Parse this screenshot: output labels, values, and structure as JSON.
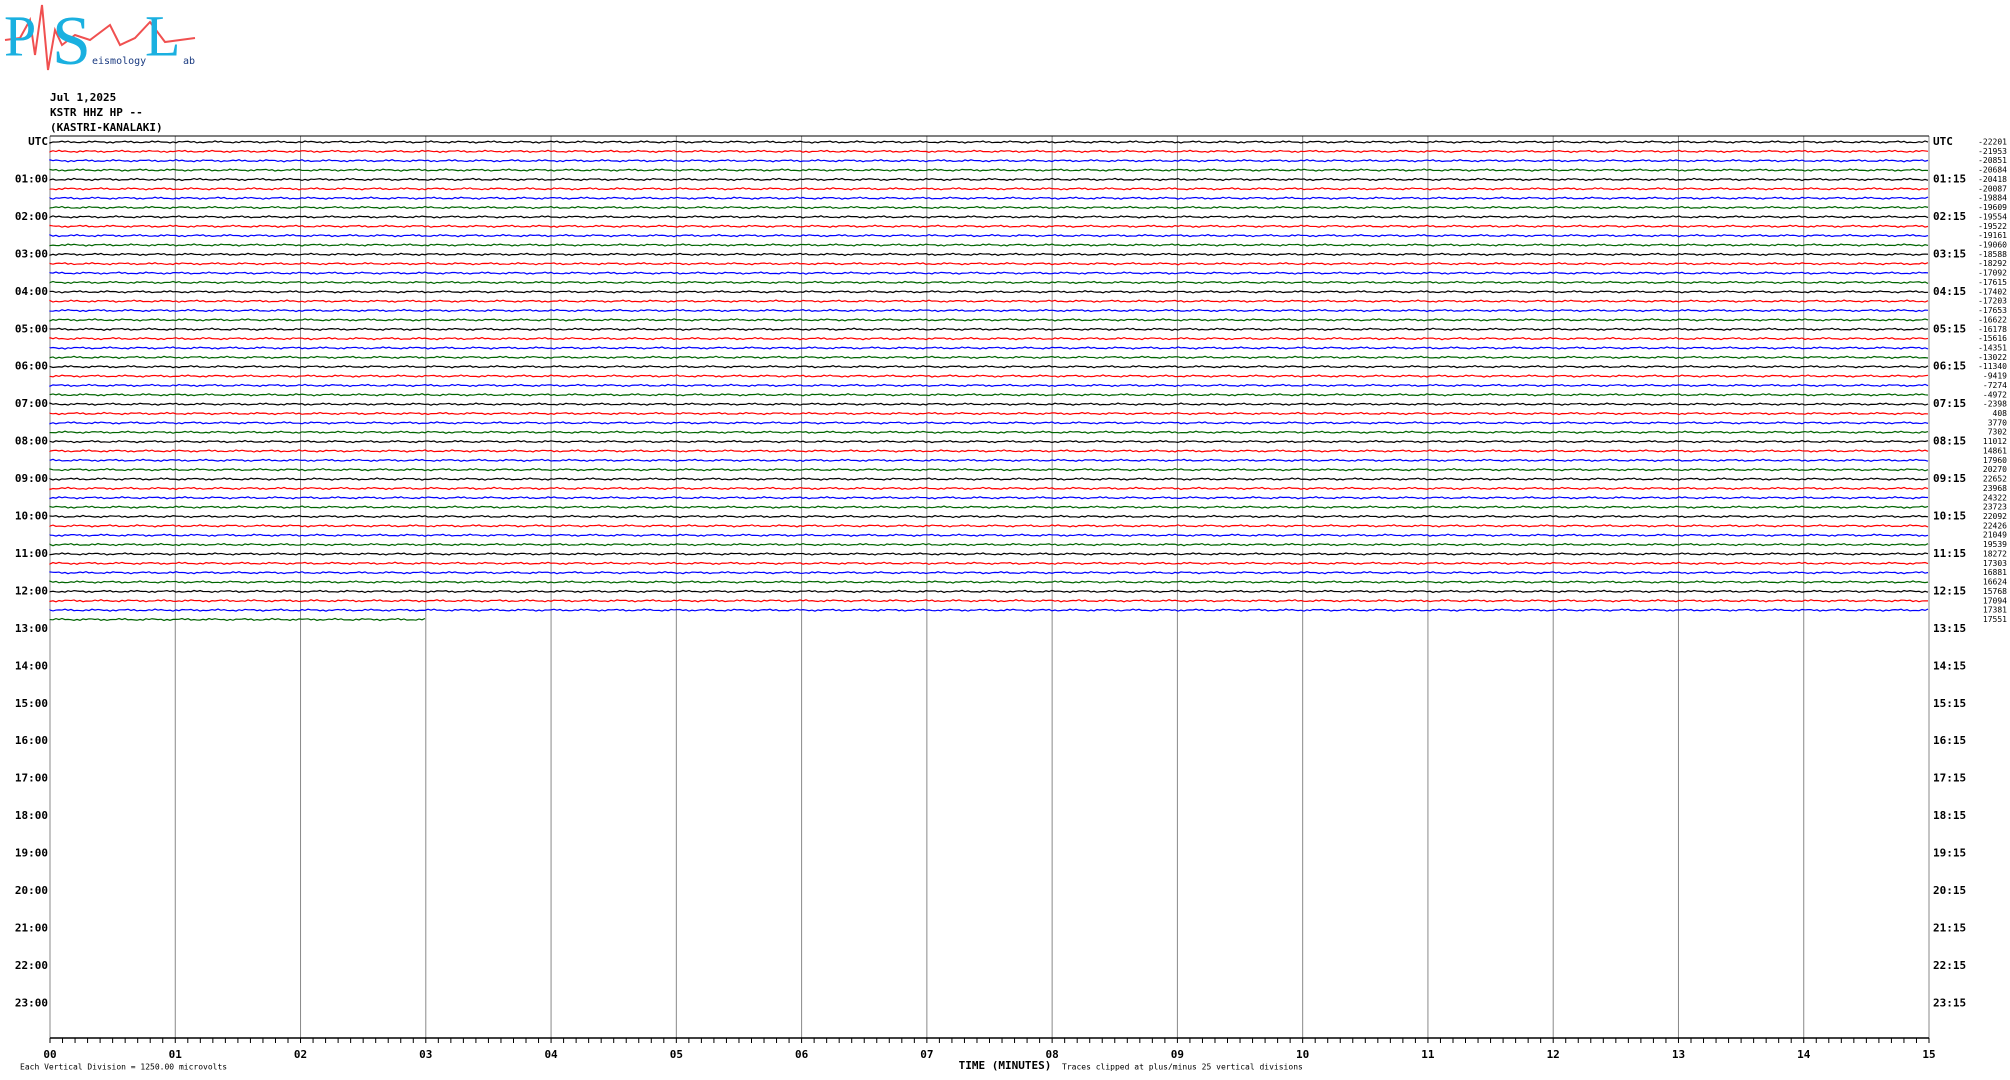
{
  "chart_data": {
    "type": "helicorder",
    "logo": {
      "letters": [
        "P",
        "S",
        "L"
      ],
      "words": [
        "eismology",
        "ab"
      ]
    },
    "title_lines": [
      "Jul 1,2025",
      "KSTR HHZ HP --",
      "(KASTRI-KANALAKI)"
    ],
    "left_labels": [
      "UTC",
      "01:00",
      "02:00",
      "03:00",
      "04:00",
      "05:00",
      "06:00",
      "07:00",
      "08:00",
      "09:00",
      "10:00",
      "11:00",
      "12:00",
      "13:00",
      "14:00",
      "15:00",
      "16:00",
      "17:00",
      "18:00",
      "19:00",
      "20:00",
      "21:00",
      "22:00",
      "23:00"
    ],
    "right_labels": [
      "UTC",
      "01:15",
      "02:15",
      "03:15",
      "04:15",
      "05:15",
      "06:15",
      "07:15",
      "08:15",
      "09:15",
      "10:15",
      "11:15",
      "12:15",
      "13:15",
      "14:15",
      "15:15",
      "16:15",
      "17:15",
      "18:15",
      "19:15",
      "20:15",
      "21:15",
      "22:15",
      "23:15"
    ],
    "colors": [
      "#000000",
      "#ff0000",
      "#0000ff",
      "#006400"
    ],
    "offsets": [
      -22201,
      -21953,
      -20851,
      -20684,
      -20418,
      -20087,
      -19884,
      -19609,
      -19554,
      -19522,
      -19161,
      -19060,
      -18588,
      -18292,
      -17092,
      -17615,
      -17402,
      -17203,
      -17653,
      -16622,
      -16178,
      -15616,
      -14351,
      -13022,
      -11340,
      -9419,
      -7274,
      -4972,
      -2398,
      408,
      3770,
      7302,
      11012,
      14861,
      17960,
      20270,
      22652,
      23968,
      24322,
      23723,
      22092,
      22426,
      21049,
      19539,
      18272,
      17303,
      16881,
      16624,
      15768,
      17094,
      17381,
      17551
    ],
    "last_trace_end": 3,
    "xlim": [
      0,
      15
    ],
    "xticks": [
      {
        "value": 0,
        "label": "00"
      },
      {
        "value": 1,
        "label": "01"
      },
      {
        "value": 2,
        "label": "02"
      },
      {
        "value": 3,
        "label": "03"
      },
      {
        "value": 4,
        "label": "04"
      },
      {
        "value": 5,
        "label": "05"
      },
      {
        "value": 6,
        "label": "06"
      },
      {
        "value": 7,
        "label": "07"
      },
      {
        "value": 8,
        "label": "08"
      },
      {
        "value": 9,
        "label": "09"
      },
      10,
      11,
      12,
      13,
      14,
      15
    ],
    "xlabel": "TIME (MINUTES)",
    "scale_note": "Each Vertical Division = 1250.00 microvolts",
    "clip_note": "Traces clipped at plus/minus 25 vertical divisions"
  }
}
